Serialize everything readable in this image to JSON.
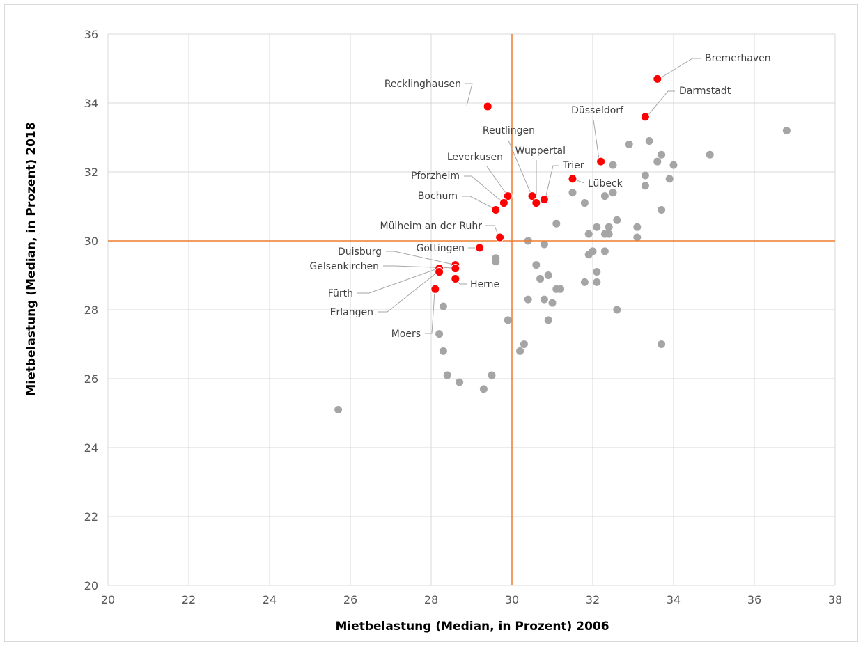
{
  "chart_data": {
    "type": "scatter",
    "title": "",
    "xlabel": "Mietbelastung (Median, in Prozent) 2006",
    "ylabel": "Mietbelastung (Median, in Prozent) 2018",
    "xlim": [
      20,
      38
    ],
    "ylim": [
      20,
      36
    ],
    "xticks": [
      "20",
      "22",
      "24",
      "26",
      "28",
      "30",
      "32",
      "34",
      "36",
      "38"
    ],
    "yticks": [
      "20",
      "22",
      "24",
      "26",
      "28",
      "30",
      "32",
      "34",
      "36"
    ],
    "grid": true,
    "legend": "none",
    "reference_lines": {
      "x": 30,
      "y": 30
    },
    "colors": {
      "highlight": "#ff0000",
      "other": "#a5a5a5",
      "reference": "#ed7d31",
      "grid": "#d9d9d9"
    },
    "highlighted": [
      {
        "label": "Bremerhaven",
        "x": 33.6,
        "y": 34.7
      },
      {
        "label": "Darmstadt",
        "x": 33.3,
        "y": 33.6
      },
      {
        "label": "Recklinghausen",
        "x": 29.4,
        "y": 33.9
      },
      {
        "label": "Düsseldorf",
        "x": 32.2,
        "y": 32.3
      },
      {
        "label": "Reutlingen",
        "x": 30.5,
        "y": 31.3
      },
      {
        "label": "Wuppertal",
        "x": 30.6,
        "y": 31.1
      },
      {
        "label": "Trier",
        "x": 30.8,
        "y": 31.2
      },
      {
        "label": "Lübeck",
        "x": 31.5,
        "y": 31.8
      },
      {
        "label": "Leverkusen",
        "x": 29.9,
        "y": 31.3
      },
      {
        "label": "Pforzheim",
        "x": 29.8,
        "y": 31.1
      },
      {
        "label": "Bochum",
        "x": 29.6,
        "y": 30.9
      },
      {
        "label": "Mülheim an der Ruhr",
        "x": 29.7,
        "y": 30.1
      },
      {
        "label": "Göttingen",
        "x": 29.2,
        "y": 29.8
      },
      {
        "label": "Duisburg",
        "x": 28.6,
        "y": 29.3
      },
      {
        "label": "Gelsenkirchen",
        "x": 28.6,
        "y": 29.2
      },
      {
        "label": "Fürth",
        "x": 28.2,
        "y": 29.2
      },
      {
        "label": "Erlangen",
        "x": 28.2,
        "y": 29.1
      },
      {
        "label": "Herne",
        "x": 28.6,
        "y": 28.9
      },
      {
        "label": "Moers",
        "x": 28.1,
        "y": 28.6
      }
    ],
    "others": [
      [
        25.7,
        25.1
      ],
      [
        28.2,
        27.3
      ],
      [
        28.3,
        28.1
      ],
      [
        28.3,
        26.8
      ],
      [
        28.4,
        26.1
      ],
      [
        28.7,
        25.9
      ],
      [
        29.3,
        25.7
      ],
      [
        29.5,
        26.1
      ],
      [
        29.6,
        29.5
      ],
      [
        29.6,
        29.4
      ],
      [
        29.9,
        27.7
      ],
      [
        30.2,
        26.8
      ],
      [
        30.3,
        27.0
      ],
      [
        30.4,
        30.0
      ],
      [
        30.4,
        28.3
      ],
      [
        30.6,
        29.3
      ],
      [
        30.7,
        28.9
      ],
      [
        30.8,
        29.9
      ],
      [
        30.8,
        28.3
      ],
      [
        30.9,
        29.0
      ],
      [
        30.9,
        27.7
      ],
      [
        31.0,
        28.2
      ],
      [
        31.1,
        30.5
      ],
      [
        31.1,
        28.6
      ],
      [
        31.2,
        28.6
      ],
      [
        31.5,
        31.4
      ],
      [
        31.8,
        31.1
      ],
      [
        31.8,
        28.8
      ],
      [
        31.9,
        30.2
      ],
      [
        31.9,
        29.6
      ],
      [
        32.0,
        29.7
      ],
      [
        32.1,
        30.4
      ],
      [
        32.1,
        29.1
      ],
      [
        32.1,
        28.8
      ],
      [
        32.3,
        31.3
      ],
      [
        32.3,
        30.2
      ],
      [
        32.3,
        29.7
      ],
      [
        32.4,
        30.4
      ],
      [
        32.4,
        30.2
      ],
      [
        32.5,
        32.2
      ],
      [
        32.5,
        31.4
      ],
      [
        32.6,
        30.6
      ],
      [
        32.6,
        28.0
      ],
      [
        32.9,
        32.8
      ],
      [
        33.1,
        30.4
      ],
      [
        33.1,
        30.1
      ],
      [
        33.3,
        31.9
      ],
      [
        33.3,
        31.6
      ],
      [
        33.4,
        32.9
      ],
      [
        33.6,
        32.3
      ],
      [
        33.7,
        32.5
      ],
      [
        33.7,
        30.9
      ],
      [
        33.7,
        27.0
      ],
      [
        33.9,
        31.8
      ],
      [
        34.0,
        32.2
      ],
      [
        34.9,
        32.5
      ],
      [
        36.8,
        33.2
      ]
    ]
  }
}
